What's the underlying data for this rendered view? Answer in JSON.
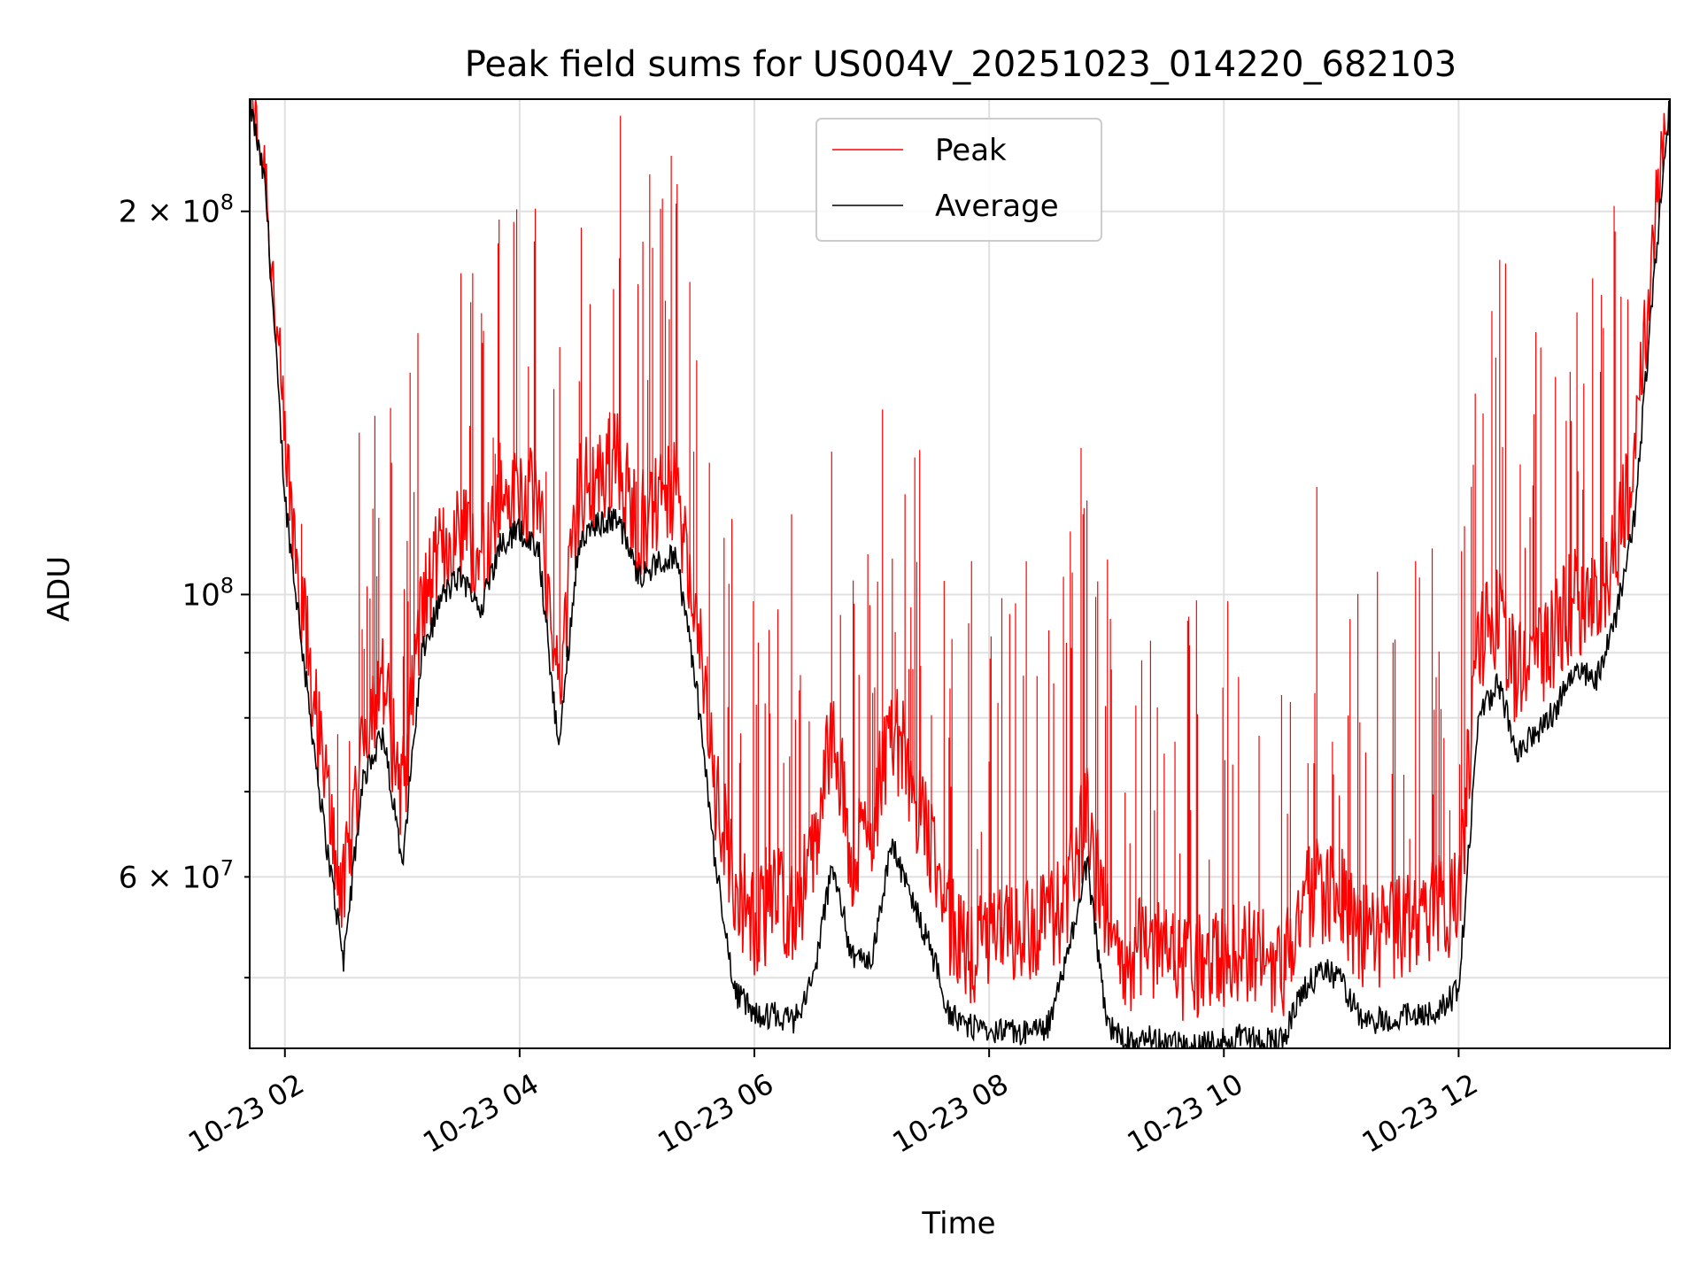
{
  "chart_data": {
    "type": "line",
    "title": "Peak field sums for US004V_20251023_014220_682103",
    "xlabel": "Time",
    "ylabel": "ADU",
    "y_scale": "log",
    "ylim": [
      44000000,
      245000000
    ],
    "xlim": [
      "10-23 01:42",
      "10-23 13:48"
    ],
    "grid": true,
    "legend_position": "upper center",
    "x_ticks": [
      "10-23 02",
      "10-23 04",
      "10-23 06",
      "10-23 08",
      "10-23 10",
      "10-23 12"
    ],
    "y_major_ticks": [
      {
        "value": 100000000,
        "mantissa": "",
        "exponent": "8",
        "base": "10"
      },
      {
        "value": 200000000,
        "mantissa": "2 × ",
        "exponent": "8",
        "base": "10"
      }
    ],
    "y_minor_ticks": [
      {
        "value": 60000000,
        "mantissa": "6 × ",
        "exponent": "7",
        "base": "10"
      },
      {
        "value": 50000000,
        "mantissa": "",
        "exponent": "",
        "base": ""
      },
      {
        "value": 70000000,
        "mantissa": "",
        "exponent": "",
        "base": ""
      },
      {
        "value": 80000000,
        "mantissa": "",
        "exponent": "",
        "base": ""
      },
      {
        "value": 90000000,
        "mantissa": "",
        "exponent": "",
        "base": ""
      }
    ],
    "series": [
      {
        "name": "Peak",
        "color": "#ff0000",
        "x": [
          "10-23 01:42",
          "10-23 01:50",
          "10-23 02:00",
          "10-23 02:10",
          "10-23 02:20",
          "10-23 02:30",
          "10-23 02:40",
          "10-23 02:50",
          "10-23 03:00",
          "10-23 03:10",
          "10-23 03:20",
          "10-23 03:30",
          "10-23 03:40",
          "10-23 03:50",
          "10-23 04:00",
          "10-23 04:10",
          "10-23 04:20",
          "10-23 04:30",
          "10-23 04:40",
          "10-23 04:50",
          "10-23 05:00",
          "10-23 05:10",
          "10-23 05:20",
          "10-23 05:30",
          "10-23 05:40",
          "10-23 05:50",
          "10-23 06:00",
          "10-23 06:10",
          "10-23 06:20",
          "10-23 06:30",
          "10-23 06:40",
          "10-23 06:50",
          "10-23 07:00",
          "10-23 07:10",
          "10-23 07:20",
          "10-23 07:30",
          "10-23 07:40",
          "10-23 07:50",
          "10-23 08:00",
          "10-23 08:10",
          "10-23 08:20",
          "10-23 08:30",
          "10-23 08:40",
          "10-23 08:50",
          "10-23 09:00",
          "10-23 09:10",
          "10-23 09:20",
          "10-23 09:30",
          "10-23 09:40",
          "10-23 09:50",
          "10-23 10:00",
          "10-23 10:10",
          "10-23 10:20",
          "10-23 10:30",
          "10-23 10:40",
          "10-23 10:50",
          "10-23 11:00",
          "10-23 11:10",
          "10-23 11:20",
          "10-23 11:30",
          "10-23 11:40",
          "10-23 11:50",
          "10-23 12:00",
          "10-23 12:10",
          "10-23 12:20",
          "10-23 12:30",
          "10-23 12:40",
          "10-23 12:50",
          "10-23 13:00",
          "10-23 13:10",
          "10-23 13:20",
          "10-23 13:30",
          "10-23 13:40",
          "10-23 13:48"
        ],
        "values": [
          245000000,
          215000000,
          130000000,
          95000000,
          72000000,
          58000000,
          78000000,
          86000000,
          70000000,
          98000000,
          108000000,
          112000000,
          106000000,
          118000000,
          122000000,
          116000000,
          84000000,
          120000000,
          124000000,
          128000000,
          114000000,
          118000000,
          120000000,
          96000000,
          70000000,
          60000000,
          55000000,
          58000000,
          57000000,
          62000000,
          80000000,
          62000000,
          66000000,
          80000000,
          72000000,
          64000000,
          55000000,
          53000000,
          53000000,
          54000000,
          55000000,
          55000000,
          58000000,
          68000000,
          54000000,
          52000000,
          53000000,
          52000000,
          51000000,
          51000000,
          52000000,
          53000000,
          52000000,
          51000000,
          57000000,
          59000000,
          58000000,
          54000000,
          54000000,
          55000000,
          56000000,
          57000000,
          58000000,
          92000000,
          96000000,
          86000000,
          90000000,
          94000000,
          100000000,
          98000000,
          108000000,
          128000000,
          190000000,
          245000000
        ]
      },
      {
        "name": "Average",
        "color": "#000000",
        "x": [
          "10-23 01:42",
          "10-23 01:50",
          "10-23 02:00",
          "10-23 02:10",
          "10-23 02:20",
          "10-23 02:30",
          "10-23 02:40",
          "10-23 02:50",
          "10-23 03:00",
          "10-23 03:10",
          "10-23 03:20",
          "10-23 03:30",
          "10-23 03:40",
          "10-23 03:50",
          "10-23 04:00",
          "10-23 04:10",
          "10-23 04:20",
          "10-23 04:30",
          "10-23 04:40",
          "10-23 04:50",
          "10-23 05:00",
          "10-23 05:10",
          "10-23 05:20",
          "10-23 05:30",
          "10-23 05:40",
          "10-23 05:50",
          "10-23 06:00",
          "10-23 06:10",
          "10-23 06:20",
          "10-23 06:30",
          "10-23 06:40",
          "10-23 06:50",
          "10-23 07:00",
          "10-23 07:10",
          "10-23 07:20",
          "10-23 07:30",
          "10-23 07:40",
          "10-23 07:50",
          "10-23 08:00",
          "10-23 08:10",
          "10-23 08:20",
          "10-23 08:30",
          "10-23 08:40",
          "10-23 08:50",
          "10-23 09:00",
          "10-23 09:10",
          "10-23 09:20",
          "10-23 09:30",
          "10-23 09:40",
          "10-23 09:50",
          "10-23 10:00",
          "10-23 10:10",
          "10-23 10:20",
          "10-23 10:30",
          "10-23 10:40",
          "10-23 10:50",
          "10-23 11:00",
          "10-23 11:10",
          "10-23 11:20",
          "10-23 11:30",
          "10-23 11:40",
          "10-23 11:50",
          "10-23 12:00",
          "10-23 12:10",
          "10-23 12:20",
          "10-23 12:30",
          "10-23 12:40",
          "10-23 12:50",
          "10-23 13:00",
          "10-23 13:10",
          "10-23 13:20",
          "10-23 13:30",
          "10-23 13:40",
          "10-23 13:48"
        ],
        "values": [
          245000000,
          210000000,
          120000000,
          88000000,
          66000000,
          52000000,
          72000000,
          78000000,
          62000000,
          90000000,
          100000000,
          104000000,
          98000000,
          110000000,
          113000000,
          108000000,
          76000000,
          110000000,
          114000000,
          116000000,
          104000000,
          106000000,
          108000000,
          86000000,
          62000000,
          49000000,
          47000000,
          47000000,
          46500000,
          50000000,
          62000000,
          52000000,
          52000000,
          64000000,
          58000000,
          53000000,
          47000000,
          46000000,
          45500000,
          45500000,
          45500000,
          46000000,
          52000000,
          62000000,
          46000000,
          45000000,
          45000000,
          44800000,
          44500000,
          44500000,
          45000000,
          45200000,
          45000000,
          44800000,
          49000000,
          51000000,
          50000000,
          46500000,
          46500000,
          46800000,
          47000000,
          47500000,
          49000000,
          80000000,
          86000000,
          76000000,
          78000000,
          82000000,
          88000000,
          86000000,
          96000000,
          116000000,
          180000000,
          245000000
        ]
      }
    ]
  }
}
